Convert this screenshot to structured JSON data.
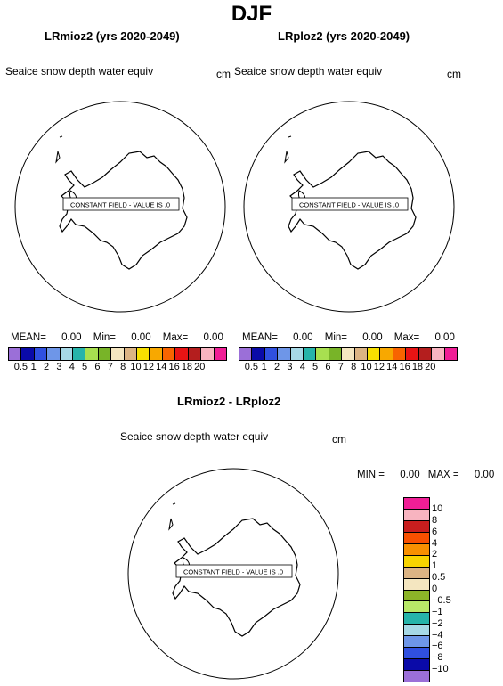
{
  "title": "DJF",
  "panels": [
    {
      "title": "LRmioz2 (yrs 2020-2049)",
      "variable": "Seaice snow depth water equiv",
      "units": "cm",
      "note": "CONSTANT FIELD - VALUE IS .0",
      "stats": {
        "mean_label": "MEAN=",
        "mean": "0.00",
        "min_label": "Min=",
        "min": "0.00",
        "max_label": "Max=",
        "max": "0.00"
      }
    },
    {
      "title": "LRploz2 (yrs 2020-2049)",
      "variable": "Seaice snow depth water equiv",
      "units": "cm",
      "note": "CONSTANT FIELD - VALUE IS .0",
      "stats": {
        "mean_label": "MEAN=",
        "mean": "0.00",
        "min_label": "Min=",
        "min": "0.00",
        "max_label": "Max=",
        "max": "0.00"
      }
    },
    {
      "title": "LRmioz2 - LRploz2",
      "variable": "Seaice snow depth water equiv",
      "units": "cm",
      "note": "CONSTANT FIELD - VALUE IS .0",
      "stats": {
        "min_label": "MIN =",
        "min": "0.00",
        "max_label": "MAX =",
        "max": "0.00"
      }
    }
  ],
  "colorbar_abs": {
    "colors": [
      "#9b6fd8",
      "#0a0aa8",
      "#3050e0",
      "#6e96e8",
      "#a6d8e6",
      "#26b4aa",
      "#a8e050",
      "#78b428",
      "#f4e6c0",
      "#dcb484",
      "#f8e000",
      "#f8a800",
      "#f86400",
      "#e81414",
      "#b41e1e",
      "#f8b4c0",
      "#f01e96"
    ],
    "labels": [
      "0.5",
      "1",
      "2",
      "3",
      "4",
      "5",
      "6",
      "7",
      "8",
      "10",
      "12",
      "14",
      "16",
      "18",
      "20"
    ]
  },
  "colorbar_diff": {
    "colors": [
      "#f01e96",
      "#f8b4c0",
      "#c81e1e",
      "#f85000",
      "#f89000",
      "#f8d400",
      "#dcb484",
      "#f4e6c0",
      "#8cb428",
      "#b8e868",
      "#26b4aa",
      "#a6d8e6",
      "#6e96e8",
      "#3050e0",
      "#0a0aa8",
      "#9b6fd8"
    ],
    "labels": [
      "10",
      "8",
      "6",
      "4",
      "2",
      "1",
      "0.5",
      "0",
      "−0.5",
      "−1",
      "−2",
      "−4",
      "−6",
      "−8",
      "−10"
    ]
  }
}
